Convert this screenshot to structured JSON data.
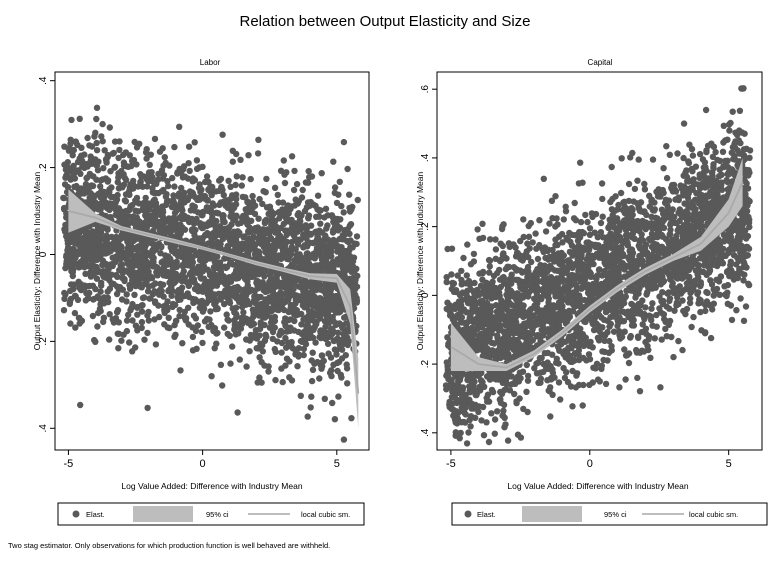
{
  "figure": {
    "title": "Relation between Output Elasticity and Size",
    "note": "Two stag estimator. Only observations for which production function is well behaved are withheld."
  },
  "colors": {
    "points": "#595959",
    "band": "#bdbdbd",
    "line": "#a9a9a9",
    "axis": "#000000"
  },
  "chart_data": [
    {
      "type": "scatter",
      "title": "Labor",
      "xlabel": "Log Value Added: Difference with Industry Mean",
      "ylabel": "Output Elasticity: Difference with Industry Mean",
      "xlim": [
        -5.5,
        6.2
      ],
      "ylim": [
        -0.45,
        0.42
      ],
      "xticks": [
        -5,
        0,
        5
      ],
      "xtick_labels": [
        "-5",
        "0",
        "5"
      ],
      "yticks": [
        -0.4,
        -0.2,
        0,
        0.2,
        0.4
      ],
      "ytick_labels": [
        ".4",
        ".2",
        "0",
        ".2",
        ".4"
      ],
      "scatter_cloud": {
        "x_range": [
          -5.2,
          5.8
        ],
        "trend_intercept": 0,
        "trend_slope": -0.016,
        "spread": 0.1
      },
      "series": [
        {
          "name": "local cubic sm.",
          "x": [
            -5,
            -4,
            -3,
            -2,
            -1,
            0,
            1,
            2,
            3,
            4,
            5,
            5.5,
            5.8
          ],
          "values": [
            0.1,
            0.085,
            0.06,
            0.045,
            0.03,
            0.015,
            -0.002,
            -0.02,
            -0.035,
            -0.05,
            -0.055,
            -0.12,
            -0.32
          ],
          "ci_low": [
            0.05,
            0.075,
            0.055,
            0.04,
            0.025,
            0.011,
            -0.006,
            -0.025,
            -0.04,
            -0.057,
            -0.065,
            -0.16,
            -0.4
          ],
          "ci_high": [
            0.15,
            0.095,
            0.065,
            0.05,
            0.035,
            0.019,
            0.002,
            -0.015,
            -0.03,
            -0.043,
            -0.045,
            -0.08,
            -0.24
          ]
        }
      ],
      "legend": [
        "Elast.",
        "95% ci",
        "local cubic sm."
      ]
    },
    {
      "type": "scatter",
      "title": "Capital",
      "xlabel": "Log Value Added: Difference with Industry Mean",
      "ylabel": "Output Elasticity: Difference with Industry Mean",
      "xlim": [
        -5.5,
        6.2
      ],
      "ylim": [
        -0.45,
        0.65
      ],
      "xticks": [
        -5,
        0,
        5
      ],
      "xtick_labels": [
        "-5",
        "0",
        "5"
      ],
      "yticks": [
        -0.4,
        -0.2,
        0,
        0.2,
        0.4,
        0.6
      ],
      "ytick_labels": [
        ".4",
        ".2",
        "0",
        ".2",
        ".4",
        ".6"
      ],
      "scatter_cloud": {
        "x_range": [
          -5.2,
          5.8
        ],
        "trend_intercept": 0.02,
        "trend_slope": 0.04,
        "spread": 0.12
      },
      "series": [
        {
          "name": "local cubic sm.",
          "x": [
            -5,
            -4,
            -3,
            -2,
            -1,
            0,
            1,
            2,
            3,
            4,
            5,
            5.5
          ],
          "values": [
            -0.15,
            -0.2,
            -0.21,
            -0.17,
            -0.11,
            -0.04,
            0.02,
            0.07,
            0.11,
            0.15,
            0.24,
            0.33
          ],
          "ci_low": [
            -0.22,
            -0.22,
            -0.22,
            -0.18,
            -0.12,
            -0.05,
            0.01,
            0.06,
            0.1,
            0.13,
            0.2,
            0.26
          ],
          "ci_high": [
            -0.08,
            -0.18,
            -0.2,
            -0.16,
            -0.1,
            -0.03,
            0.03,
            0.08,
            0.12,
            0.17,
            0.28,
            0.4
          ]
        }
      ],
      "legend": [
        "Elast.",
        "95% ci",
        "local cubic sm."
      ]
    }
  ]
}
